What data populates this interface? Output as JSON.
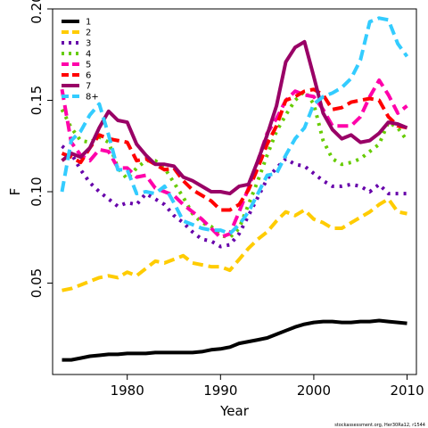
{
  "chart_data": {
    "type": "line",
    "xlabel": "Year",
    "ylabel": "F",
    "xlim": [
      1972,
      2011
    ],
    "ylim": [
      0.0,
      0.2
    ],
    "x_ticks": [
      1980,
      1990,
      2000,
      2010
    ],
    "y_ticks": [
      0.05,
      0.1,
      0.15,
      0.2
    ],
    "y_tick_labels": [
      "0.05",
      "0.10",
      "0.15",
      "0.20"
    ],
    "legend_position": "top-left",
    "x": [
      1973,
      1974,
      1975,
      1976,
      1977,
      1978,
      1979,
      1980,
      1981,
      1982,
      1983,
      1984,
      1985,
      1986,
      1987,
      1988,
      1989,
      1990,
      1991,
      1992,
      1993,
      1994,
      1995,
      1996,
      1997,
      1998,
      1999,
      2000,
      2001,
      2002,
      2003,
      2004,
      2005,
      2006,
      2007,
      2008,
      2009,
      2010
    ],
    "series": [
      {
        "name": "1",
        "color": "#000000",
        "dash": "solid",
        "values": [
          0.008,
          0.008,
          0.009,
          0.01,
          0.0105,
          0.011,
          0.011,
          0.0115,
          0.0115,
          0.0115,
          0.012,
          0.012,
          0.012,
          0.012,
          0.012,
          0.0125,
          0.0135,
          0.014,
          0.015,
          0.017,
          0.018,
          0.019,
          0.02,
          0.022,
          0.024,
          0.026,
          0.0275,
          0.0285,
          0.029,
          0.029,
          0.0285,
          0.0285,
          0.029,
          0.029,
          0.0295,
          0.029,
          0.0285,
          0.028
        ]
      },
      {
        "name": "2",
        "color": "#FFCC00",
        "dash": "long",
        "values": [
          0.046,
          0.047,
          0.049,
          0.051,
          0.053,
          0.054,
          0.053,
          0.056,
          0.054,
          0.058,
          0.062,
          0.061,
          0.063,
          0.065,
          0.061,
          0.06,
          0.059,
          0.059,
          0.057,
          0.063,
          0.069,
          0.074,
          0.078,
          0.084,
          0.089,
          0.087,
          0.09,
          0.085,
          0.083,
          0.08,
          0.08,
          0.083,
          0.086,
          0.089,
          0.093,
          0.096,
          0.089,
          0.088
        ]
      },
      {
        "name": "3",
        "color": "#6600AA",
        "dash": "dot",
        "values": [
          0.125,
          0.121,
          0.112,
          0.105,
          0.1,
          0.096,
          0.092,
          0.094,
          0.093,
          0.099,
          0.096,
          0.093,
          0.087,
          0.083,
          0.078,
          0.074,
          0.073,
          0.07,
          0.071,
          0.077,
          0.087,
          0.097,
          0.107,
          0.113,
          0.118,
          0.115,
          0.114,
          0.11,
          0.106,
          0.103,
          0.103,
          0.104,
          0.103,
          0.1,
          0.104,
          0.099,
          0.099,
          0.099
        ]
      },
      {
        "name": "4",
        "color": "#66CC00",
        "dash": "dot",
        "values": [
          0.145,
          0.135,
          0.128,
          0.127,
          0.13,
          0.127,
          0.113,
          0.107,
          0.113,
          0.117,
          0.117,
          0.113,
          0.105,
          0.097,
          0.088,
          0.083,
          0.081,
          0.076,
          0.075,
          0.08,
          0.093,
          0.106,
          0.12,
          0.133,
          0.142,
          0.15,
          0.155,
          0.148,
          0.128,
          0.118,
          0.115,
          0.116,
          0.118,
          0.122,
          0.126,
          0.138,
          0.135,
          0.128
        ]
      },
      {
        "name": "5",
        "color": "#FF00AA",
        "dash": "long",
        "values": [
          0.156,
          0.127,
          0.12,
          0.117,
          0.123,
          0.122,
          0.113,
          0.113,
          0.108,
          0.109,
          0.102,
          0.1,
          0.098,
          0.093,
          0.089,
          0.085,
          0.08,
          0.075,
          0.077,
          0.089,
          0.102,
          0.117,
          0.132,
          0.14,
          0.15,
          0.155,
          0.153,
          0.152,
          0.145,
          0.136,
          0.136,
          0.136,
          0.141,
          0.152,
          0.161,
          0.153,
          0.143,
          0.147
        ]
      },
      {
        "name": "6",
        "color": "#FF0000",
        "dash": "long",
        "values": [
          0.121,
          0.119,
          0.116,
          0.124,
          0.131,
          0.129,
          0.128,
          0.127,
          0.117,
          0.118,
          0.115,
          0.112,
          0.113,
          0.106,
          0.101,
          0.098,
          0.095,
          0.09,
          0.09,
          0.093,
          0.101,
          0.113,
          0.126,
          0.136,
          0.15,
          0.152,
          0.155,
          0.156,
          0.153,
          0.145,
          0.146,
          0.149,
          0.15,
          0.151,
          0.15,
          0.141,
          0.136,
          0.135
        ]
      },
      {
        "name": "7",
        "color": "#990066",
        "dash": "solid",
        "values": [
          0.117,
          0.121,
          0.119,
          0.124,
          0.135,
          0.144,
          0.139,
          0.138,
          0.126,
          0.12,
          0.115,
          0.115,
          0.114,
          0.108,
          0.106,
          0.103,
          0.1,
          0.1,
          0.099,
          0.103,
          0.104,
          0.117,
          0.131,
          0.147,
          0.171,
          0.179,
          0.182,
          0.163,
          0.143,
          0.134,
          0.129,
          0.131,
          0.127,
          0.128,
          0.132,
          0.138,
          0.137,
          0.135
        ]
      },
      {
        "name": "8+",
        "color": "#33CCFF",
        "dash": "long",
        "values": [
          0.1,
          0.128,
          0.133,
          0.142,
          0.148,
          0.131,
          0.112,
          0.112,
          0.099,
          0.1,
          0.099,
          0.103,
          0.094,
          0.084,
          0.082,
          0.08,
          0.079,
          0.079,
          0.077,
          0.082,
          0.089,
          0.099,
          0.109,
          0.11,
          0.12,
          0.129,
          0.135,
          0.148,
          0.152,
          0.154,
          0.157,
          0.162,
          0.172,
          0.193,
          0.195,
          0.194,
          0.181,
          0.174
        ]
      }
    ]
  },
  "footer": {
    "credit": "stockassessment.org, Her30Ra12, r1544"
  }
}
